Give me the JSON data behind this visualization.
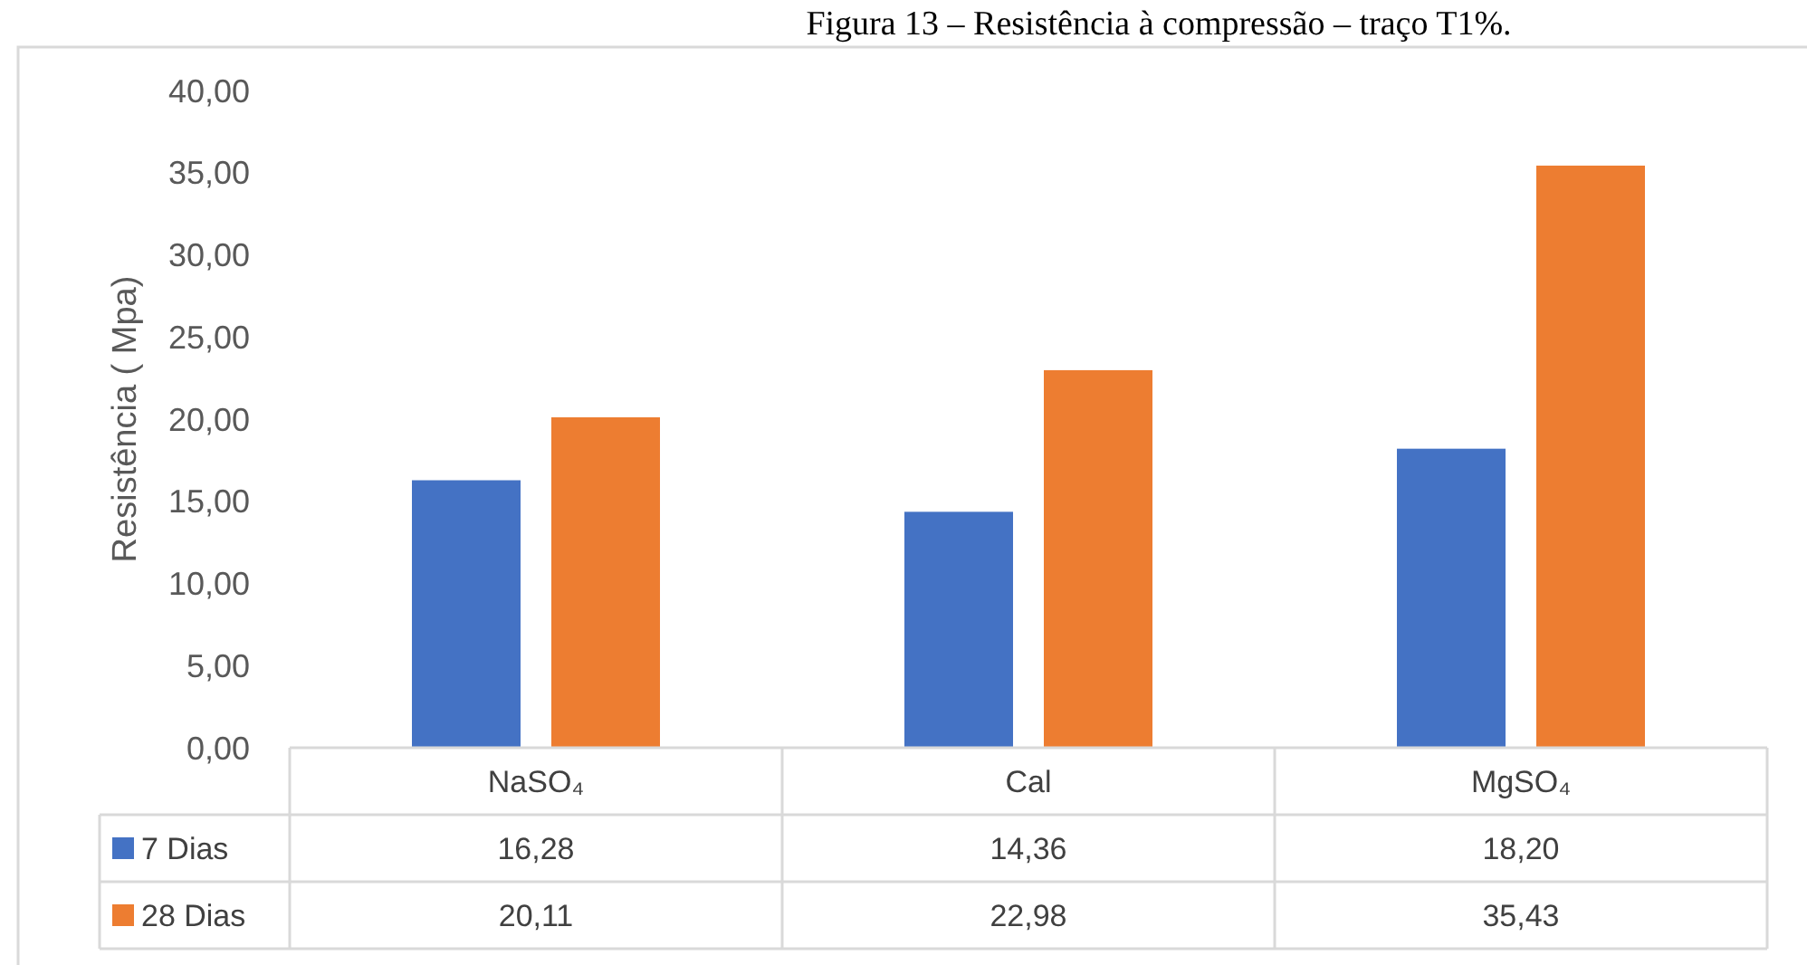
{
  "chart_data": {
    "type": "bar",
    "title": "Figura 13 – Resistência à compressão – traço T1%.",
    "ylabel": "Resistência ( Mpa)",
    "categories": [
      "NaSO₄",
      "Cal",
      "MgSO₄"
    ],
    "series": [
      {
        "name": "7 Dias",
        "color": "#4472c4",
        "values": [
          16.28,
          14.36,
          18.2
        ],
        "value_labels": [
          "16,28",
          "14,36",
          "18,20"
        ]
      },
      {
        "name": "28 Dias",
        "color": "#ed7d31",
        "values": [
          20.11,
          22.98,
          35.43
        ],
        "value_labels": [
          "20,11",
          "22,98",
          "35,43"
        ]
      }
    ],
    "ylim": [
      0,
      40
    ],
    "yticks": [
      {
        "value": 0,
        "label": "0,00"
      },
      {
        "value": 5,
        "label": "5,00"
      },
      {
        "value": 10,
        "label": "10,00"
      },
      {
        "value": 15,
        "label": "15,00"
      },
      {
        "value": 20,
        "label": "20,00"
      },
      {
        "value": 25,
        "label": "25,00"
      },
      {
        "value": 30,
        "label": "30,00"
      },
      {
        "value": 35,
        "label": "35,00"
      },
      {
        "value": 40,
        "label": "40,00"
      }
    ],
    "grid": false,
    "legend": "bottom"
  }
}
